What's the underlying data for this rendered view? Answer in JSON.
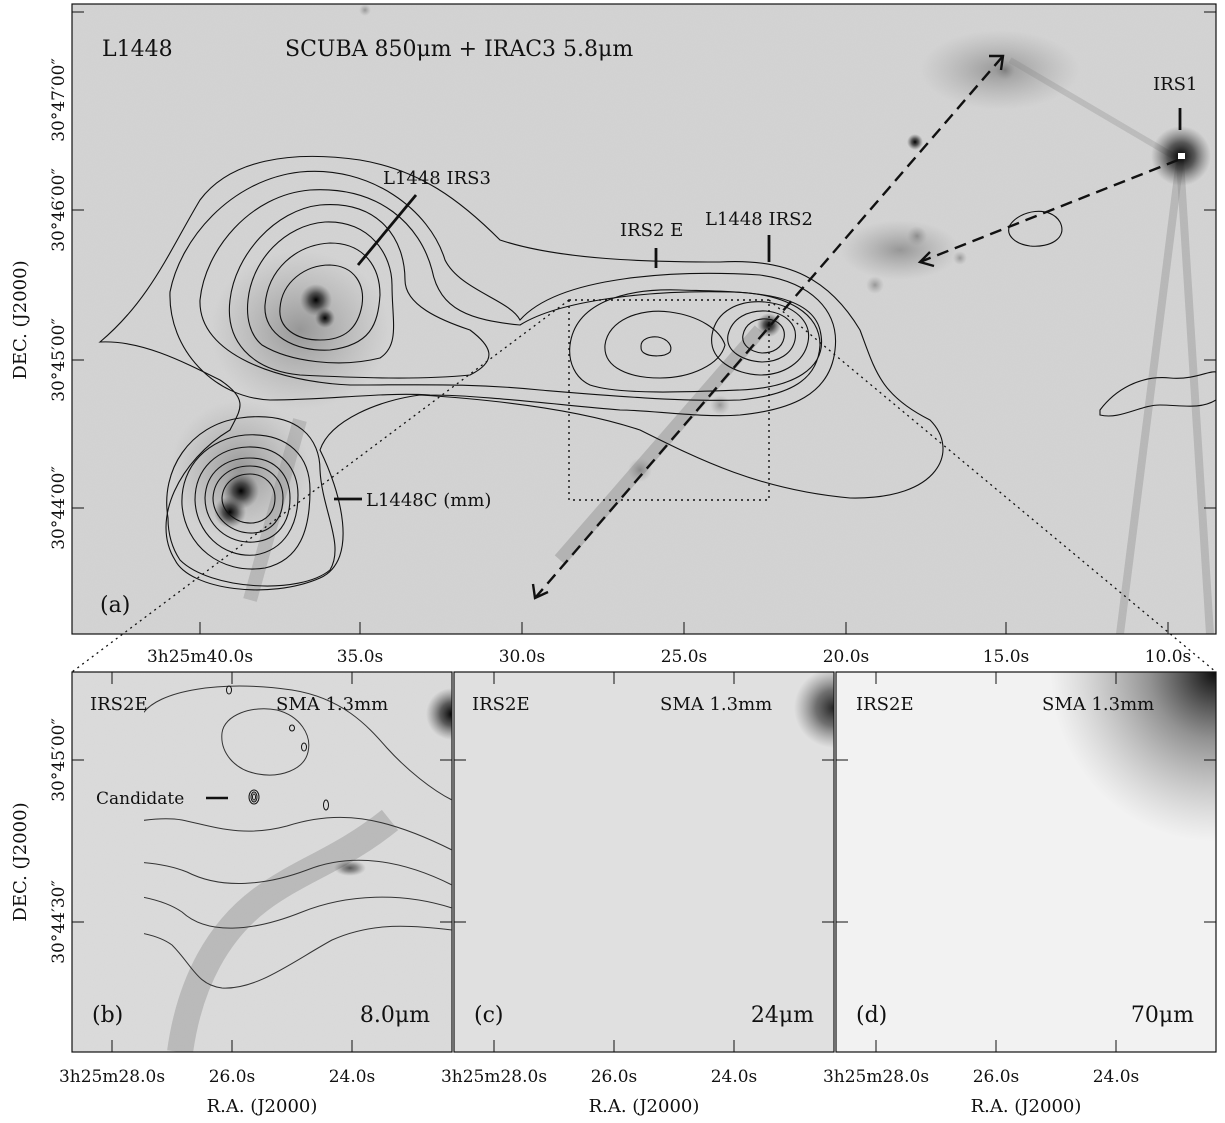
{
  "panel_a": {
    "title_left": "L1448",
    "title_right": "SCUBA 850μm + IRAC3 5.8μm",
    "panel_label": "(a)",
    "labels": {
      "irs3": "L1448 IRS3",
      "irs2e": "IRS2 E",
      "irs2": "L1448 IRS2",
      "irs1": "IRS1",
      "l1448c": "L1448C (mm)"
    },
    "dec_ticks": [
      "30°47′00″",
      "30°46′00″",
      "30°45′00″",
      "30°44′00″"
    ],
    "ra_ticks": [
      "3h25m40.0s",
      "35.0s",
      "30.0s",
      "25.0s",
      "20.0s",
      "15.0s",
      "10.0s"
    ],
    "ylabel": "DEC. (J2000)"
  },
  "small_panels": [
    {
      "title_left": "IRS2E",
      "title_right": "SMA 1.3mm",
      "panel_label": "(b)",
      "wavelength": "8.0μm",
      "candidate_label": "Candidate"
    },
    {
      "title_left": "IRS2E",
      "title_right": "SMA 1.3mm",
      "panel_label": "(c)",
      "wavelength": "24μm"
    },
    {
      "title_left": "IRS2E",
      "title_right": "SMA 1.3mm",
      "panel_label": "(d)",
      "wavelength": "70μm"
    }
  ],
  "small_ra_ticks": [
    "3h25m28.0s",
    "26.0s",
    "24.0s"
  ],
  "small_dec_ticks": [
    "30°45′00″",
    "30°44′30″"
  ],
  "xlabel": "R.A. (J2000)",
  "ylabel_small": "DEC. (J2000)"
}
